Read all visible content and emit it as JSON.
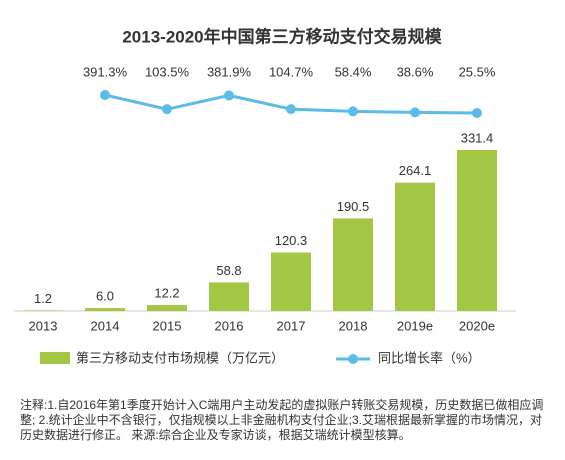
{
  "chart_data": {
    "type": "bar-line",
    "title": "2013-2020年中国第三方移动支付交易规模",
    "categories": [
      "2013",
      "2014",
      "2015",
      "2016",
      "2017",
      "2018",
      "2019e",
      "2020e"
    ],
    "series": [
      {
        "name": "第三方移动支付市场规模（万亿元）",
        "type": "bar",
        "color": "#a3c644",
        "values": [
          1.2,
          6.0,
          12.2,
          58.8,
          120.3,
          190.5,
          264.1,
          331.4
        ],
        "value_labels": [
          "1.2",
          "6.0",
          "12.2",
          "58.8",
          "120.3",
          "190.5",
          "264.1",
          "331.4"
        ]
      },
      {
        "name": "同比增长率（%）",
        "type": "line",
        "color": "#5bbde6",
        "values": [
          null,
          391.3,
          103.5,
          381.9,
          104.7,
          58.4,
          38.6,
          25.5
        ],
        "value_labels": [
          null,
          "391.3%",
          "103.5%",
          "381.9%",
          "104.7%",
          "58.4%",
          "38.6%",
          "25.5%"
        ]
      }
    ],
    "legend": "bottom",
    "note": "注释:1.自2016年第1季度开始计入C端用户主动发起的虚拟账户转账交易规模，历史数据已做相应调整; 2.统计企业中不含银行，仅指规模以上非金融机构支付企业;3.艾瑞根据最新掌握的市场情况，对历史数据进行修正。 来源:综合企业及专家访谈，根据艾瑞统计模型核算。"
  }
}
